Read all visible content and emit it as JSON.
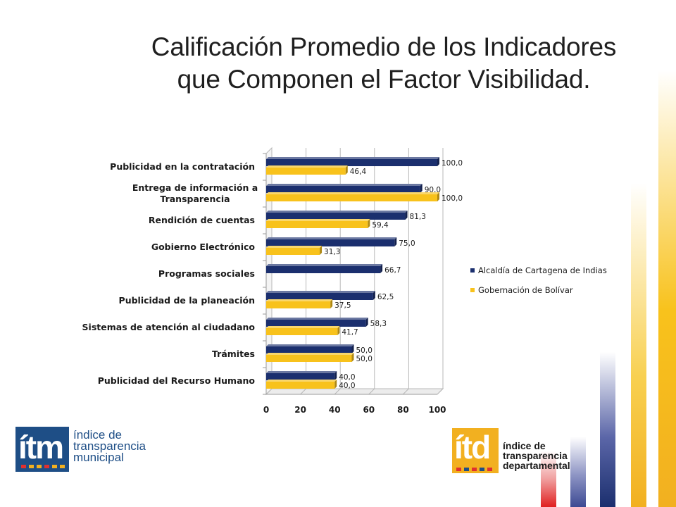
{
  "slide": {
    "title_line1": "Calificación Promedio de los Indicadores",
    "title_line2": "que Componen el Factor Visibilidad."
  },
  "chart_data": {
    "type": "bar",
    "orientation": "horizontal",
    "title": "",
    "xlabel": "",
    "ylabel": "",
    "xlim": [
      0,
      100
    ],
    "x_ticks": [
      "0",
      "20",
      "40",
      "60",
      "80",
      "100"
    ],
    "grid": true,
    "legend_position": "right",
    "categories": [
      "Publicidad en la contratación",
      "Entrega de información a Transparencia",
      "Rendición de cuentas",
      "Gobierno Electrónico",
      "Programas sociales",
      "Publicidad de la planeación",
      "Sistemas de atención al ciudadano",
      "Trámites",
      "Publicidad del Recurso Humano"
    ],
    "category_lines": [
      [
        "Publicidad en la contratación"
      ],
      [
        "Entrega de información a",
        "Transparencia"
      ],
      [
        "Rendición de cuentas"
      ],
      [
        "Gobierno Electrónico"
      ],
      [
        "Programas sociales"
      ],
      [
        "Publicidad de la planeación"
      ],
      [
        "Sistemas de atención al ciudadano"
      ],
      [
        "Trámites"
      ],
      [
        "Publicidad del Recurso Humano"
      ]
    ],
    "series": [
      {
        "name": "Alcaldía de Cartagena de Indias",
        "color": "#1b2f6e",
        "values": [
          100.0,
          90.0,
          81.3,
          75.0,
          66.7,
          62.5,
          58.3,
          50.0,
          40.0
        ],
        "labels": [
          "100,0",
          "90,0",
          "81,3",
          "75,0",
          "66,7",
          "62,5",
          "58,3",
          "50,0",
          "40,0"
        ]
      },
      {
        "name": "Gobernación de Bolívar",
        "color": "#f8c21c",
        "values": [
          46.4,
          100.0,
          59.4,
          31.3,
          null,
          37.5,
          41.7,
          50.0,
          40.0
        ],
        "labels": [
          "46,4",
          "100,0",
          "59,4",
          "31,3",
          null,
          "37,5",
          "41,7",
          "50,0",
          "40,0"
        ]
      }
    ]
  },
  "logos": {
    "itm_letters": "ítm",
    "itm_line1": "índice de",
    "itm_line2": "transparencia",
    "itm_line3": "municipal",
    "itd_letters": "ítd",
    "itd_line1": "índice de",
    "itd_line2": "transparencia",
    "itd_line3": "departamental"
  },
  "colors": {
    "navy": "#1b2f6e",
    "gold": "#f8c21c",
    "logo_blue": "#1e4e86",
    "logo_gold": "#f2b020"
  }
}
